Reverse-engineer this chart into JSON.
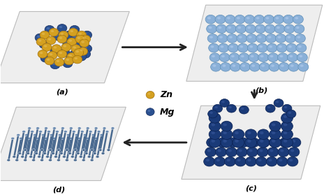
{
  "bg_color": "#ffffff",
  "panel_color": "#eeeeee",
  "panel_edge_color": "#bbbbbb",
  "zn_color": "#d4a020",
  "zn_highlight": "#e8c060",
  "mg_color": "#2a5090",
  "mg_highlight": "#5a80c0",
  "lb_color": "#8ab0d8",
  "lb_highlight": "#b8d0f0",
  "lb_edge": "#6090b8",
  "db_color": "#1a3a78",
  "db_highlight": "#3a5aa0",
  "db_edge": "#0a2050",
  "nanorod_color": "#4a6a90",
  "nanorod_highlight": "#6a8ab0",
  "arrow_color": "#222222",
  "label_a": "(a)",
  "label_b": "(b)",
  "label_c": "(c)",
  "label_d": "(d)",
  "legend_zn": "Zn",
  "legend_mg": "Mg"
}
